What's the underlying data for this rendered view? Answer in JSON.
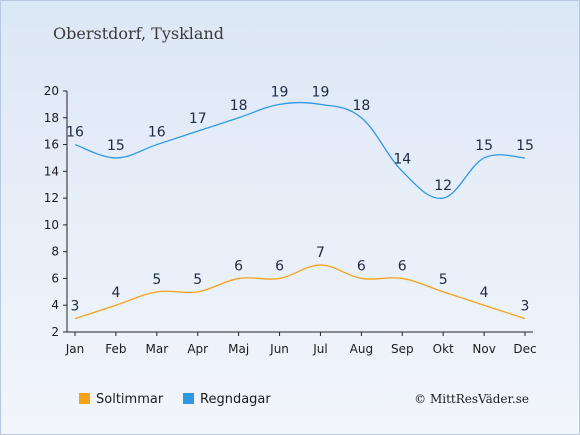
{
  "location_title": "Oberstdorf, Tyskland",
  "copyright": "© MittResVäder.se",
  "colors": {
    "sun_series": "#f7a21b",
    "rain_series": "#2f97e8",
    "axis": "#222222",
    "label_text": "#1f2a44"
  },
  "chart_data": {
    "type": "line",
    "title": "Oberstdorf, Tyskland",
    "xlabel": "",
    "ylabel": "",
    "categories": [
      "Jan",
      "Feb",
      "Mar",
      "Apr",
      "Maj",
      "Jun",
      "Jul",
      "Aug",
      "Sep",
      "Okt",
      "Nov",
      "Dec"
    ],
    "ylim": [
      2,
      20
    ],
    "yticks": [
      2,
      4,
      6,
      8,
      10,
      12,
      14,
      16,
      18,
      20
    ],
    "grid": false,
    "legend_position": "bottom-left",
    "series": [
      {
        "name": "Soltimmar",
        "color": "#f7a21b",
        "values": [
          3,
          4,
          5,
          5,
          6,
          6,
          7,
          6,
          6,
          5,
          4,
          3
        ]
      },
      {
        "name": "Regndagar",
        "color": "#2f97e8",
        "values": [
          16,
          15,
          16,
          17,
          18,
          19,
          19,
          18,
          14,
          12,
          15,
          15
        ]
      }
    ]
  }
}
